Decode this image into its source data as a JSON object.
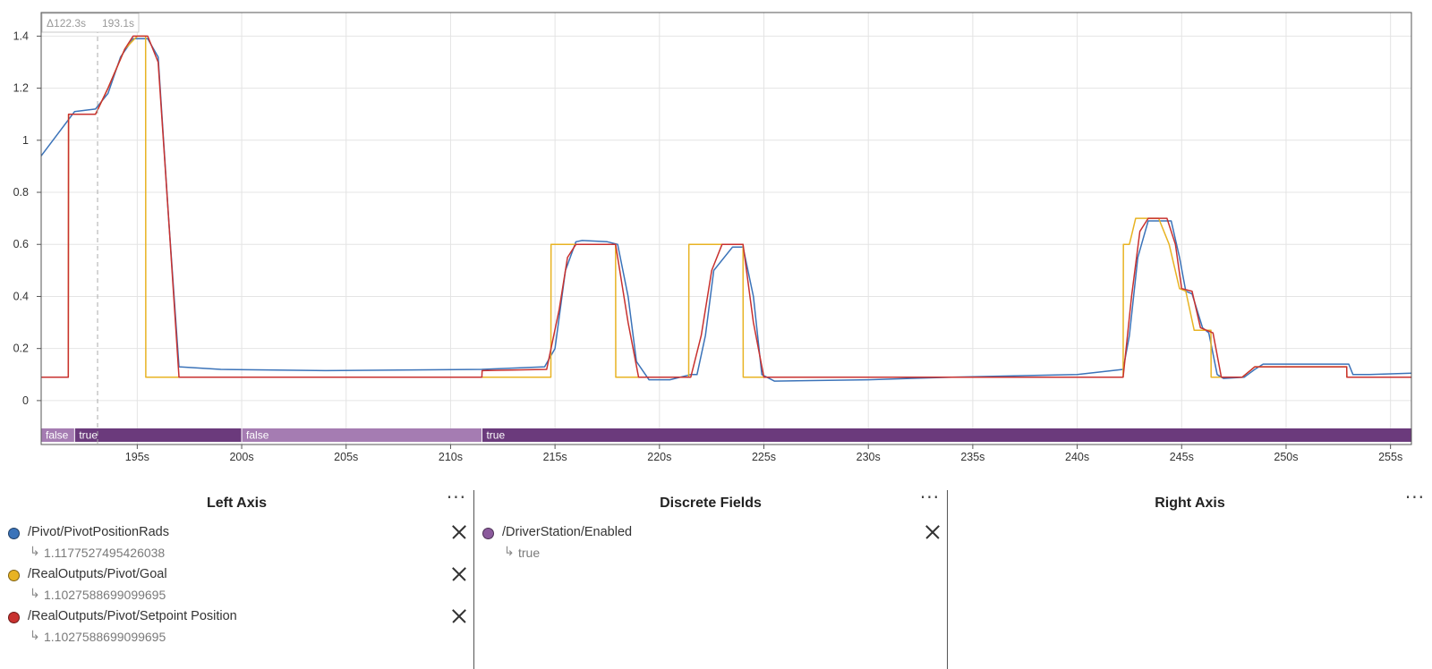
{
  "chart_data": {
    "type": "line",
    "cursor_readout": {
      "delta": "Δ122.3s",
      "time": "193.1s"
    },
    "cursor_time": 193.1,
    "xlim": [
      190.4,
      256.0
    ],
    "ylim": [
      -0.1,
      1.47
    ],
    "x_ticks": [
      195,
      200,
      205,
      210,
      215,
      220,
      225,
      230,
      235,
      240,
      245,
      250,
      255
    ],
    "x_tick_labels": [
      "195s",
      "200s",
      "205s",
      "210s",
      "215s",
      "220s",
      "225s",
      "230s",
      "235s",
      "240s",
      "245s",
      "250s",
      "255s"
    ],
    "y_ticks": [
      0,
      0.2,
      0.4,
      0.6,
      0.8,
      1,
      1.2,
      1.4
    ],
    "y_tick_labels": [
      "0",
      "0.2",
      "0.4",
      "0.6",
      "0.8",
      "1",
      "1.2",
      "1.4"
    ],
    "grid": true,
    "series": [
      {
        "name": "/Pivot/PivotPositionRads",
        "color": "#3b73b9",
        "x": [
          190.4,
          192.0,
          193.0,
          193.6,
          194.2,
          194.8,
          195.5,
          196.0,
          196.5,
          197.0,
          199.0,
          204.0,
          211.5,
          214.5,
          215.0,
          215.5,
          216.0,
          216.3,
          217.5,
          218.0,
          218.5,
          218.9,
          219.5,
          220.5,
          221.5,
          221.8,
          222.2,
          222.6,
          223.5,
          224.0,
          224.5,
          224.9,
          225.5,
          230.0,
          234.0,
          240.0,
          242.2,
          242.5,
          242.9,
          243.4,
          244.5,
          244.9,
          245.2,
          245.5,
          246.0,
          246.3,
          246.7,
          247.0,
          248.0,
          248.5,
          248.9,
          249.5,
          253.0,
          253.2,
          254.0,
          256.0
        ],
        "y": [
          0.94,
          1.11,
          1.12,
          1.18,
          1.32,
          1.39,
          1.39,
          1.32,
          0.7,
          0.13,
          0.12,
          0.115,
          0.12,
          0.13,
          0.2,
          0.5,
          0.61,
          0.615,
          0.61,
          0.6,
          0.4,
          0.15,
          0.08,
          0.08,
          0.1,
          0.1,
          0.25,
          0.5,
          0.59,
          0.59,
          0.4,
          0.1,
          0.075,
          0.08,
          0.09,
          0.1,
          0.12,
          0.25,
          0.55,
          0.69,
          0.69,
          0.55,
          0.42,
          0.41,
          0.28,
          0.26,
          0.1,
          0.085,
          0.09,
          0.12,
          0.14,
          0.14,
          0.14,
          0.1,
          0.1,
          0.105
        ]
      },
      {
        "name": "/RealOutputs/Pivot/Goal",
        "color": "#e8b323",
        "x": [
          190.4,
          191.7,
          191.71,
          193.0,
          193.6,
          194.4,
          195.0,
          195.4,
          195.41,
          197.0,
          211.5,
          214.8,
          214.81,
          217.9,
          217.91,
          221.4,
          221.41,
          224.0,
          224.01,
          228.0,
          242.2,
          242.21,
          242.5,
          242.8,
          243.9,
          244.4,
          244.9,
          245.2,
          245.6,
          246.0,
          246.4,
          246.41,
          247.9,
          248.5,
          249.0,
          252.9,
          252.91,
          256.0
        ],
        "y": [
          0.09,
          0.09,
          1.1,
          1.1,
          1.2,
          1.35,
          1.4,
          1.4,
          0.09,
          0.09,
          0.09,
          0.09,
          0.6,
          0.6,
          0.09,
          0.09,
          0.6,
          0.6,
          0.09,
          0.09,
          0.09,
          0.6,
          0.6,
          0.7,
          0.7,
          0.6,
          0.43,
          0.42,
          0.27,
          0.27,
          0.27,
          0.09,
          0.09,
          0.13,
          0.13,
          0.13,
          0.09,
          0.09
        ]
      },
      {
        "name": "/RealOutputs/Pivot/Setpoint Position",
        "color": "#c8312f",
        "x": [
          190.4,
          191.7,
          191.71,
          193.0,
          193.6,
          194.4,
          194.8,
          195.5,
          196.0,
          196.5,
          197.0,
          211.5,
          211.51,
          214.6,
          215.2,
          215.6,
          216.0,
          217.9,
          218.5,
          219.0,
          221.5,
          222.0,
          222.5,
          223.0,
          224.0,
          224.5,
          225.0,
          242.2,
          242.6,
          243.0,
          243.4,
          244.3,
          244.7,
          245.0,
          245.5,
          245.9,
          246.2,
          246.5,
          246.9,
          247.9,
          248.5,
          249.0,
          252.9,
          252.91,
          256.0
        ],
        "y": [
          0.09,
          0.09,
          1.1,
          1.1,
          1.2,
          1.35,
          1.4,
          1.4,
          1.3,
          0.7,
          0.09,
          0.09,
          0.115,
          0.12,
          0.35,
          0.55,
          0.6,
          0.6,
          0.3,
          0.09,
          0.09,
          0.25,
          0.5,
          0.6,
          0.6,
          0.3,
          0.09,
          0.09,
          0.4,
          0.65,
          0.7,
          0.7,
          0.6,
          0.43,
          0.42,
          0.28,
          0.27,
          0.26,
          0.09,
          0.09,
          0.13,
          0.13,
          0.13,
          0.09,
          0.09
        ]
      }
    ],
    "discrete_series": {
      "name": "/DriverStation/Enabled",
      "segments": [
        {
          "start": 190.4,
          "end": 192.0,
          "label": "false",
          "value": false
        },
        {
          "start": 192.0,
          "end": 200.0,
          "label": "true",
          "value": true
        },
        {
          "start": 200.0,
          "end": 211.5,
          "label": "false",
          "value": false
        },
        {
          "start": 211.5,
          "end": 256.0,
          "label": "true",
          "value": true
        }
      ],
      "color_true": "#6b3a7c",
      "color_false": "#a57cb2",
      "label_color": "#ffffff"
    }
  },
  "panels": {
    "left": {
      "title": "Left Axis",
      "menu": "···",
      "fields": [
        {
          "name": "/Pivot/PivotPositionRads",
          "value": "1.1177527495426038",
          "color": "#3b73b9"
        },
        {
          "name": "/RealOutputs/Pivot/Goal",
          "value": "1.1027588699099695",
          "color": "#e8b323"
        },
        {
          "name": "/RealOutputs/Pivot/Setpoint Position",
          "value": "1.1027588699099695",
          "color": "#c8312f"
        }
      ]
    },
    "discrete": {
      "title": "Discrete Fields",
      "menu": "···",
      "fields": [
        {
          "name": "/DriverStation/Enabled",
          "value": "true",
          "color": "#8b5a9c"
        }
      ]
    },
    "right": {
      "title": "Right Axis",
      "menu": "···"
    }
  }
}
